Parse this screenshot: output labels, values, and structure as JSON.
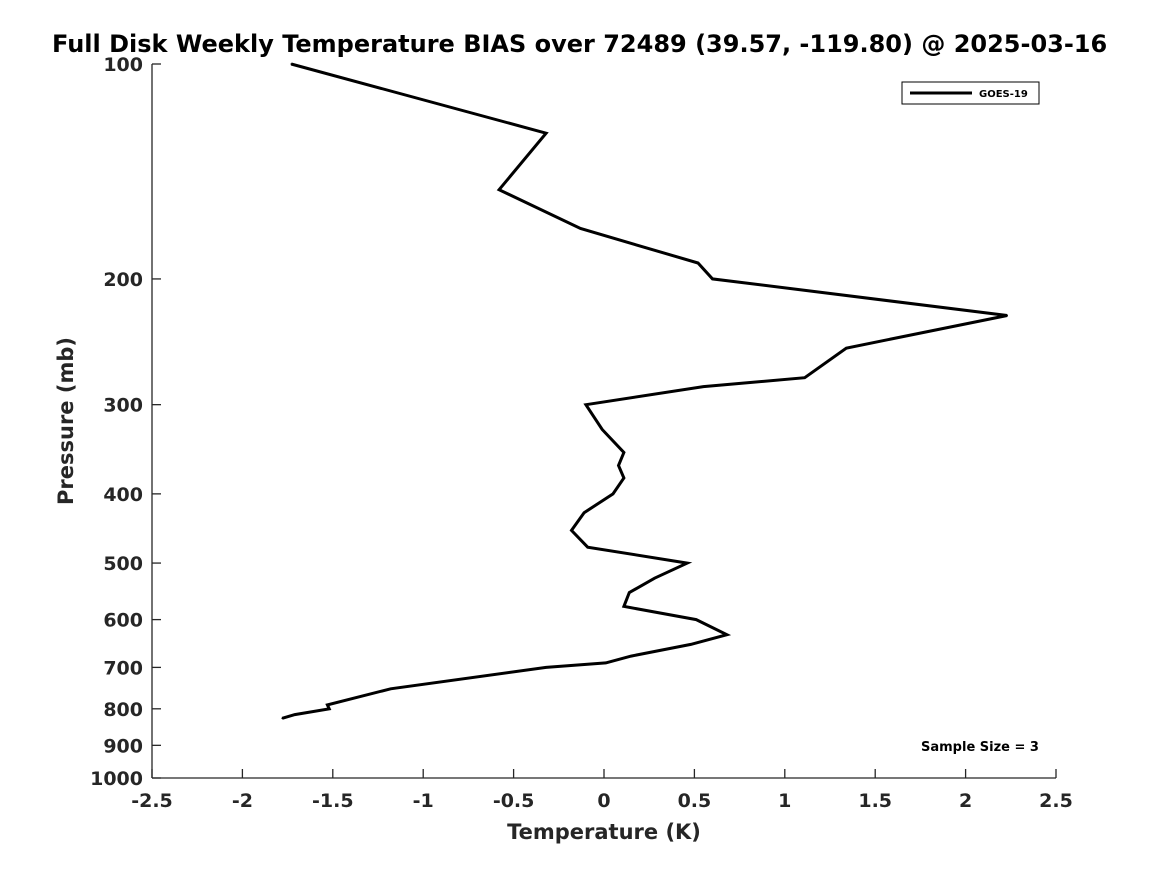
{
  "chart_data": {
    "type": "line",
    "title": "Full Disk Weekly Temperature BIAS over 72489 (39.57, -119.80) @ 2025-03-16",
    "xlabel": "Temperature (K)",
    "ylabel": "Pressure (mb)",
    "xlim": [
      -2.5,
      2.5
    ],
    "ylim": [
      100,
      1000
    ],
    "y_scale": "log",
    "y_reversed": true,
    "x_ticks": [
      "-2.5",
      "-2",
      "-1.5",
      "-1",
      "-0.5",
      "0",
      "0.5",
      "1",
      "1.5",
      "2",
      "2.5"
    ],
    "y_ticks": [
      "100",
      "200",
      "300",
      "400",
      "500",
      "600",
      "700",
      "800",
      "900",
      "1000"
    ],
    "grid": false,
    "legend_position": "top-right",
    "annotation": "Sample Size = 3",
    "series": [
      {
        "name": "GOES-19",
        "color": "#000000",
        "points": [
          {
            "x": -1.73,
            "p": 100
          },
          {
            "x": -0.32,
            "p": 125
          },
          {
            "x": -0.58,
            "p": 150
          },
          {
            "x": -0.13,
            "p": 170
          },
          {
            "x": 0.52,
            "p": 190
          },
          {
            "x": 0.6,
            "p": 200
          },
          {
            "x": 2.23,
            "p": 225
          },
          {
            "x": 1.34,
            "p": 250
          },
          {
            "x": 1.11,
            "p": 275
          },
          {
            "x": 0.55,
            "p": 283
          },
          {
            "x": -0.1,
            "p": 300
          },
          {
            "x": -0.01,
            "p": 325
          },
          {
            "x": 0.11,
            "p": 350
          },
          {
            "x": 0.08,
            "p": 365
          },
          {
            "x": 0.11,
            "p": 380
          },
          {
            "x": 0.05,
            "p": 400
          },
          {
            "x": -0.11,
            "p": 425
          },
          {
            "x": -0.18,
            "p": 450
          },
          {
            "x": -0.09,
            "p": 475
          },
          {
            "x": 0.46,
            "p": 500
          },
          {
            "x": 0.28,
            "p": 525
          },
          {
            "x": 0.14,
            "p": 550
          },
          {
            "x": 0.11,
            "p": 575
          },
          {
            "x": 0.51,
            "p": 600
          },
          {
            "x": 0.68,
            "p": 630
          },
          {
            "x": 0.48,
            "p": 650
          },
          {
            "x": 0.15,
            "p": 675
          },
          {
            "x": 0.01,
            "p": 690
          },
          {
            "x": -0.32,
            "p": 700
          },
          {
            "x": -1.18,
            "p": 750
          },
          {
            "x": -1.53,
            "p": 790
          },
          {
            "x": -1.52,
            "p": 800
          },
          {
            "x": -1.71,
            "p": 815
          },
          {
            "x": -1.78,
            "p": 825
          }
        ]
      }
    ]
  }
}
